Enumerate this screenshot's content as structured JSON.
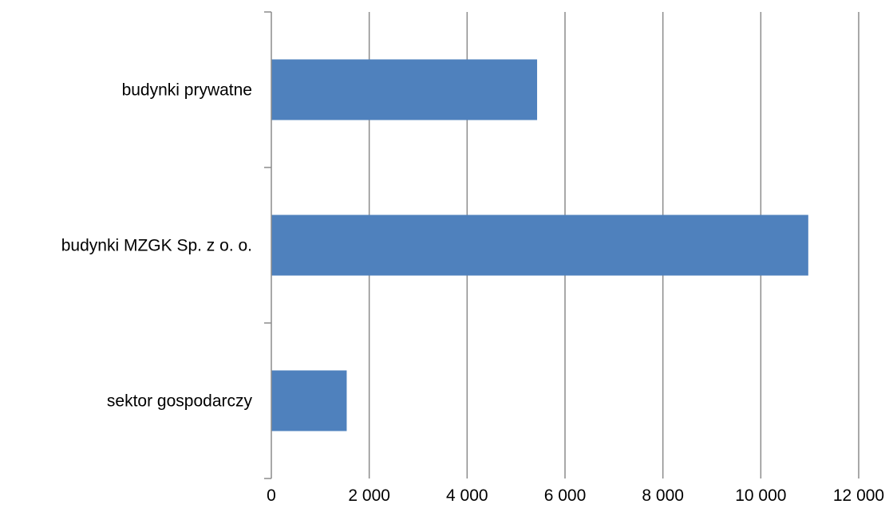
{
  "chart_data": {
    "type": "bar",
    "orientation": "horizontal",
    "categories": [
      "budynki prywatne",
      "budynki MZGK Sp. z o. o.",
      "sektor gospodarczy"
    ],
    "values": [
      5430,
      10970,
      1540
    ],
    "xlim": [
      0,
      12000
    ],
    "xticks": [
      0,
      2000,
      4000,
      6000,
      8000,
      10000,
      12000
    ],
    "xtick_labels": [
      "0",
      "2 000",
      "4 000",
      "6 000",
      "8 000",
      "10 000",
      "12 000"
    ],
    "grid": true,
    "bar_color": "#4f81bd",
    "grid_color": "#8c8c8c"
  }
}
